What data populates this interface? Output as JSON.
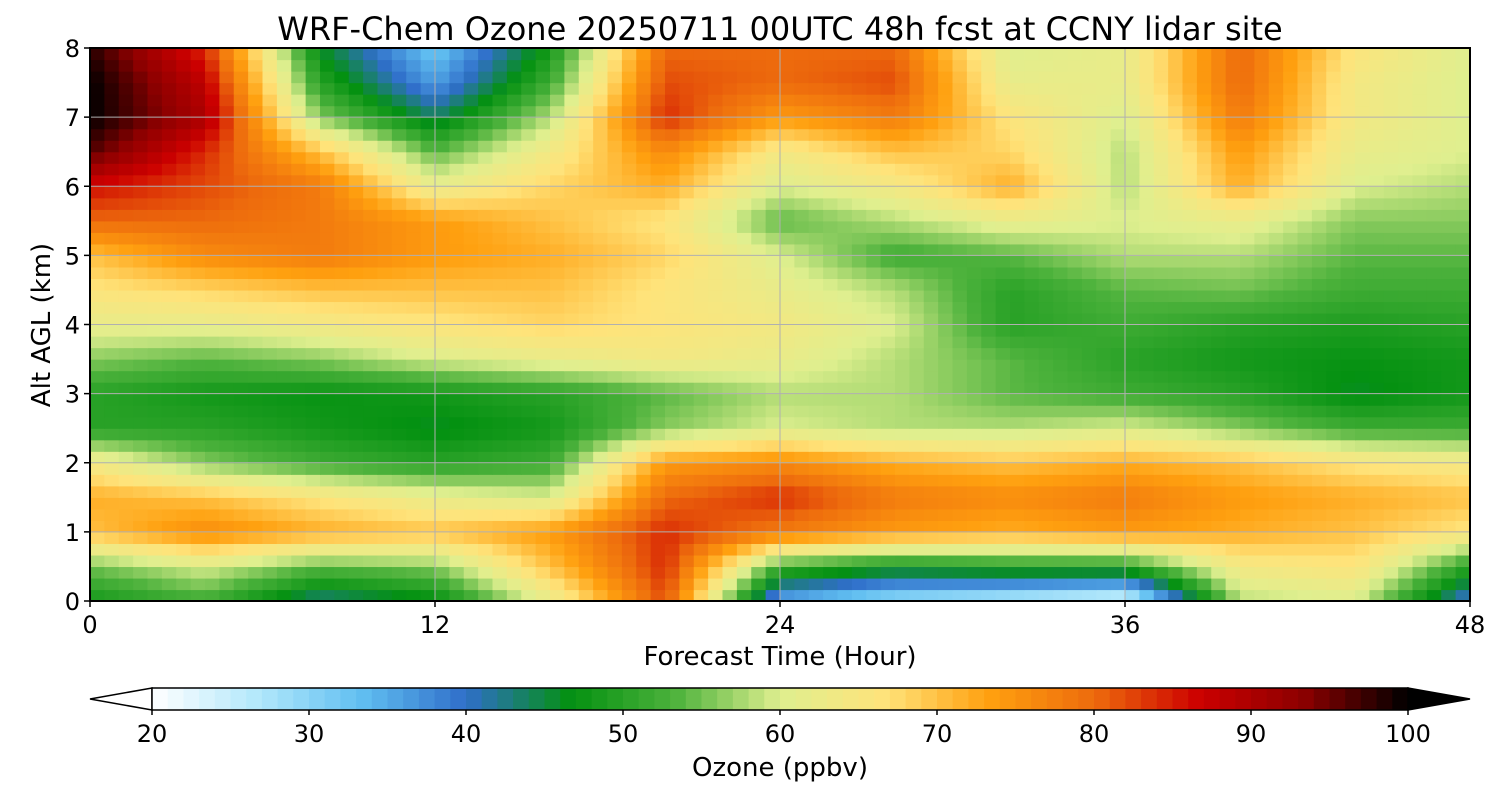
{
  "chart_data": {
    "type": "heatmap",
    "title": "WRF-Chem Ozone  20250711 00UTC 48h fcst at CCNY lidar site",
    "xlabel": "Forecast Time (Hour)",
    "ylabel": "Alt AGL (km)",
    "xlim": [
      0,
      48
    ],
    "ylim": [
      0,
      8
    ],
    "x_ticks": [
      0,
      12,
      24,
      36,
      48
    ],
    "y_ticks": [
      0,
      1,
      2,
      3,
      4,
      5,
      6,
      7,
      8
    ],
    "grid": true,
    "x": [
      0,
      4,
      8,
      12,
      16,
      20,
      24,
      28,
      32,
      36,
      40,
      44,
      48
    ],
    "y": [
      0,
      0.5,
      1,
      1.5,
      2,
      2.5,
      3,
      3.5,
      4,
      4.5,
      5,
      5.5,
      6,
      6.5,
      7,
      7.5,
      8
    ],
    "z": [
      [
        48,
        52,
        42,
        46,
        62,
        82,
        34,
        28,
        25,
        22,
        58,
        60,
        38
      ],
      [
        55,
        60,
        54,
        56,
        70,
        84,
        52,
        48,
        50,
        50,
        64,
        66,
        50
      ],
      [
        70,
        76,
        72,
        70,
        74,
        84,
        78,
        74,
        72,
        74,
        72,
        70,
        66
      ],
      [
        72,
        70,
        66,
        62,
        60,
        80,
        84,
        78,
        76,
        78,
        74,
        72,
        70
      ],
      [
        64,
        56,
        52,
        50,
        52,
        74,
        76,
        72,
        70,
        72,
        70,
        66,
        64
      ],
      [
        50,
        50,
        48,
        46,
        48,
        56,
        60,
        58,
        58,
        60,
        56,
        52,
        52
      ],
      [
        50,
        48,
        47,
        48,
        50,
        54,
        58,
        58,
        54,
        52,
        50,
        46,
        48
      ],
      [
        56,
        54,
        56,
        60,
        62,
        64,
        62,
        58,
        54,
        50,
        48,
        47,
        48
      ],
      [
        62,
        62,
        64,
        66,
        68,
        66,
        64,
        60,
        50,
        52,
        50,
        49,
        50
      ],
      [
        66,
        68,
        70,
        70,
        70,
        66,
        62,
        58,
        50,
        54,
        55,
        52,
        52
      ],
      [
        70,
        76,
        78,
        74,
        72,
        68,
        60,
        52,
        54,
        58,
        58,
        54,
        54
      ],
      [
        80,
        80,
        78,
        74,
        70,
        66,
        54,
        58,
        62,
        60,
        62,
        56,
        56
      ],
      [
        86,
        82,
        78,
        62,
        68,
        72,
        60,
        64,
        72,
        58,
        72,
        60,
        58
      ],
      [
        96,
        84,
        70,
        54,
        64,
        76,
        64,
        70,
        68,
        58,
        74,
        62,
        60
      ],
      [
        100,
        90,
        56,
        44,
        58,
        84,
        74,
        78,
        66,
        60,
        78,
        64,
        60
      ],
      [
        100,
        88,
        50,
        36,
        52,
        82,
        80,
        82,
        62,
        62,
        80,
        64,
        60
      ],
      [
        98,
        84,
        46,
        32,
        48,
        80,
        80,
        80,
        60,
        62,
        80,
        66,
        60
      ]
    ],
    "colorbar": {
      "label": "Ozone  (ppbv)",
      "min": 20,
      "max": 100,
      "ticks": [
        20,
        30,
        40,
        50,
        60,
        70,
        80,
        90,
        100
      ],
      "extend": "both",
      "colors": [
        "#ffffff",
        "#b3e8fb",
        "#61bff1",
        "#2f6ec9",
        "#049111",
        "#4db23c",
        "#dfef8f",
        "#ffe37a",
        "#ffa00f",
        "#ed6b0d",
        "#cc0000",
        "#8c0000",
        "#000000"
      ]
    }
  }
}
